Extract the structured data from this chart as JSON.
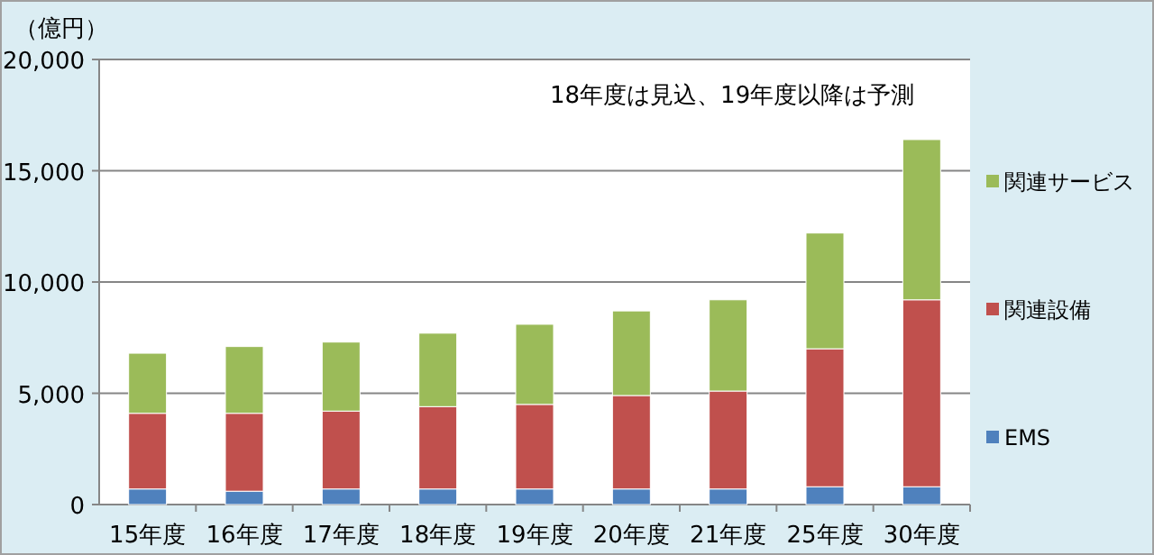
{
  "chart_data": {
    "type": "bar",
    "stacked": true,
    "ylabel": "（億円）",
    "annotations": [
      "18年度は見込、19年度以降は予測"
    ],
    "categories": [
      "15年度",
      "16年度",
      "17年度",
      "18年度",
      "19年度",
      "20年度",
      "21年度",
      "25年度",
      "30年度"
    ],
    "series": [
      {
        "name": "EMS",
        "color": "#4f81bd",
        "values": [
          700,
          600,
          700,
          700,
          700,
          700,
          700,
          800,
          800
        ]
      },
      {
        "name": "関連設備",
        "color": "#c0504d",
        "values": [
          3400,
          3500,
          3500,
          3700,
          3800,
          4200,
          4400,
          6200,
          8400
        ]
      },
      {
        "name": "関連サービス",
        "color": "#9bbb59",
        "values": [
          2700,
          3000,
          3100,
          3300,
          3600,
          3800,
          4100,
          5200,
          7200
        ]
      }
    ],
    "ylim": [
      0,
      20000
    ],
    "yticks": [
      {
        "value": 0,
        "label": "0"
      },
      {
        "value": 5000,
        "label": "5,000"
      },
      {
        "value": 10000,
        "label": "10,000"
      },
      {
        "value": 15000,
        "label": "15,000"
      },
      {
        "value": 20000,
        "label": "20,000"
      }
    ],
    "grid": "y",
    "legend": "right"
  }
}
